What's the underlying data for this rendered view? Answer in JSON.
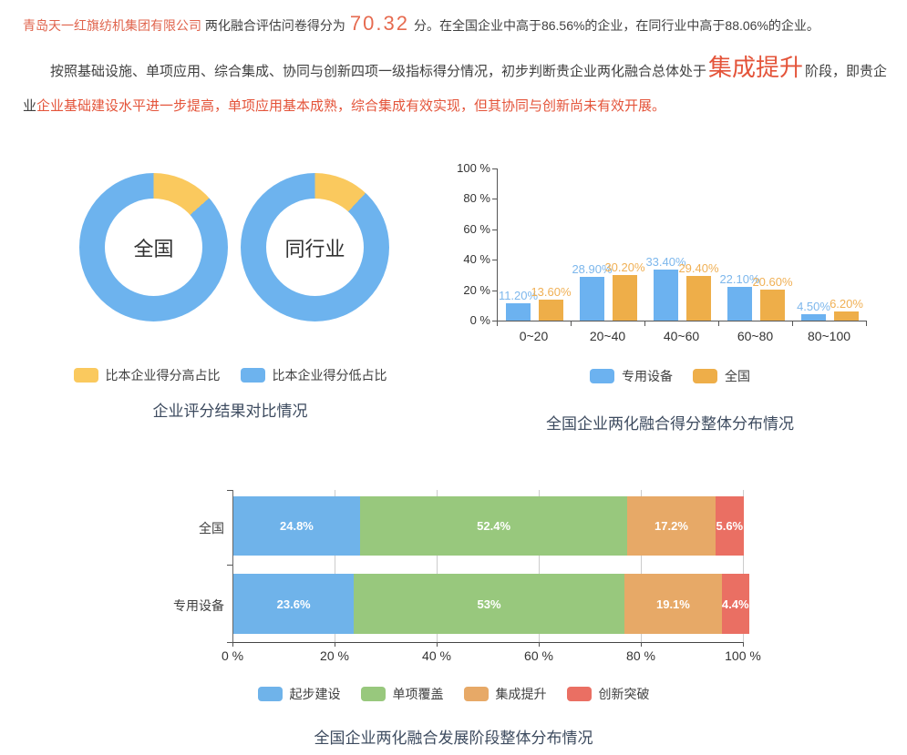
{
  "header": {
    "company": "青岛天一红旗纺机集团有限公司",
    "pre_score_text": "两化融合评估问卷得分为",
    "score": "70.32",
    "post_score_text": "分。在全国企业中高于86.56%的企业，在同行业中高于88.06%的企业。"
  },
  "summary": {
    "part1": "按照基础设施、单项应用、综合集成、协同与创新四项一级指标得分情况，初步判断贵企业两化融合总体处于",
    "stage": "集成提升",
    "part2": "阶段，即贵企业",
    "part3": "企业基础建设水平进一步提高，单项应用基本成熟，综合集成有效实现，但其协同与创新尚未有效开展。"
  },
  "colors": {
    "header_accent": "#e0644d",
    "stage_accent": "#e4543a",
    "title_text": "#3d4b5f",
    "body_text": "#404040",
    "axis": "#555555"
  },
  "chart_data": [
    {
      "type": "pie",
      "title": "企业评分结果对比情况",
      "legend_position": "bottom",
      "legend": [
        {
          "label": "比本企业得分高占比",
          "color": "#fac95e"
        },
        {
          "label": "比本企业得分低占比",
          "color": "#6db3ee"
        }
      ],
      "donuts": [
        {
          "label": "全国",
          "values": [
            13.44,
            86.56
          ]
        },
        {
          "label": "同行业",
          "values": [
            11.94,
            88.06
          ]
        }
      ]
    },
    {
      "type": "bar",
      "title": "全国企业两化融合得分整体分布情况",
      "categories": [
        "0~20",
        "20~40",
        "40~60",
        "60~80",
        "80~100"
      ],
      "series": [
        {
          "name": "专用设备",
          "color": "#6cb2f0",
          "label_color": "#7db7ec",
          "values": [
            11.2,
            28.9,
            33.4,
            22.1,
            4.5
          ],
          "labels": [
            "11.20%",
            "28.90%",
            "33.40%",
            "22.10%",
            "4.50%"
          ]
        },
        {
          "name": "全国",
          "color": "#eeae49",
          "label_color": "#f0b055",
          "values": [
            13.6,
            30.2,
            29.4,
            20.6,
            6.2
          ],
          "labels": [
            "13.60%",
            "30.20%",
            "29.40%",
            "20.60%",
            "6.20%"
          ]
        }
      ],
      "ylim": [
        0,
        100
      ],
      "ytick_labels": [
        "0 %",
        "20 %",
        "40 %",
        "60 %",
        "80 %",
        "100 %"
      ],
      "legend": [
        {
          "label": "专用设备",
          "color": "#6cb2f0"
        },
        {
          "label": "全国",
          "color": "#eeae49"
        }
      ],
      "legend_position": "bottom",
      "grid": false
    },
    {
      "type": "bar-horizontal-stacked",
      "title": "全国企业两化融合发展阶段整体分布情况",
      "categories": [
        "全国",
        "专用设备"
      ],
      "series": [
        {
          "name": "起步建设",
          "color": "#6fb3ea",
          "values": [
            24.8,
            23.6
          ],
          "labels": [
            "24.8%",
            "23.6%"
          ]
        },
        {
          "name": "单项覆盖",
          "color": "#98c87d",
          "values": [
            52.4,
            53.0
          ],
          "labels": [
            "52.4%",
            "53%"
          ]
        },
        {
          "name": "集成提升",
          "color": "#e7a967",
          "values": [
            17.2,
            19.1
          ],
          "labels": [
            "17.2%",
            "19.1%"
          ]
        },
        {
          "name": "创新突破",
          "color": "#ea6f63",
          "values": [
            5.6,
            4.4
          ],
          "labels": [
            "5.6%",
            "4.4%"
          ]
        }
      ],
      "xlim": [
        0,
        100
      ],
      "xtick_labels": [
        "0 %",
        "20 %",
        "40 %",
        "60 %",
        "80 %",
        "100 %"
      ],
      "legend": [
        {
          "label": "起步建设",
          "color": "#6fb3ea"
        },
        {
          "label": "单项覆盖",
          "color": "#98c87d"
        },
        {
          "label": "集成提升",
          "color": "#e7a967"
        },
        {
          "label": "创新突破",
          "color": "#ea6f63"
        }
      ],
      "legend_position": "bottom",
      "grid": true
    }
  ]
}
